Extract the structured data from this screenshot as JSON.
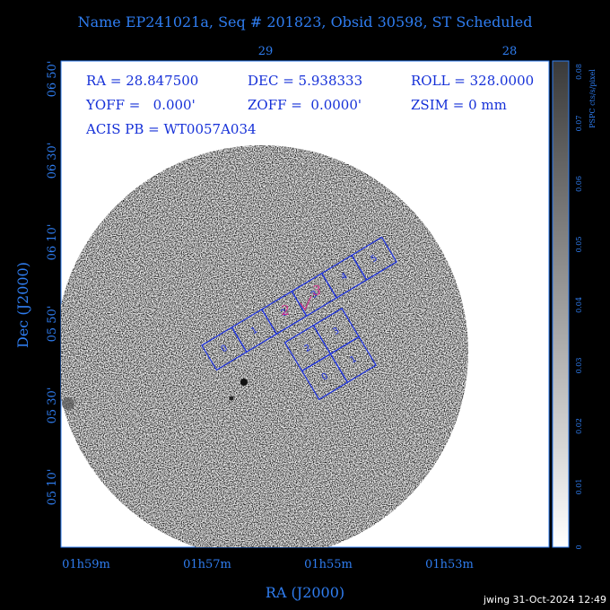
{
  "title": "Name EP241021a, Seq # 201823, Obsid 30598, ST Scheduled",
  "info": [
    "RA = 28.847500",
    "DEC = 5.938333",
    "ROLL = 328.0000",
    "YOFF =   0.000'",
    "ZOFF =  0.0000'",
    "ZSIM = 0 mm",
    "ACIS PB = WT0057A034"
  ],
  "top_axis": [
    "29",
    "28"
  ],
  "left_axis": [
    "06 50'",
    "06 30'",
    "06 10'",
    "05 50'",
    "05 30'",
    "05 10'"
  ],
  "bottom_axis": [
    "01h59m",
    "01h57m",
    "01h55m",
    "01h53m"
  ],
  "x_label": "RA (J2000)",
  "y_label": "Dec (J2000)",
  "colorbar": {
    "label": "PSPC cts/s/pixel",
    "ticks": [
      "0",
      "0.01",
      "0.02",
      "0.03",
      "0.04",
      "0.05",
      "0.06",
      "0.07",
      "0.08"
    ]
  },
  "chips": {
    "s": [
      "0",
      "1",
      "2",
      "3",
      "4",
      "5"
    ],
    "i": [
      "0",
      "1",
      "2",
      "3"
    ]
  },
  "aimpoint": [
    "2",
    "3"
  ],
  "footer": "jwing 31-Oct-2024 12:49"
}
